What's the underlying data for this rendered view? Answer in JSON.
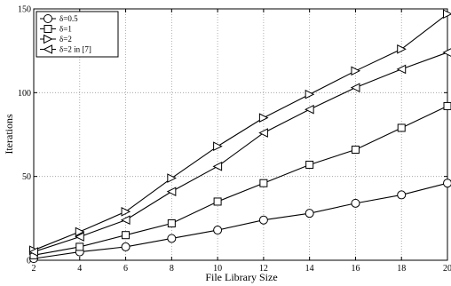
{
  "chart_data": {
    "type": "line",
    "xlabel": "File Library Size",
    "ylabel": "Iterations",
    "xlim": [
      2,
      20
    ],
    "ylim": [
      0,
      150
    ],
    "x_ticks": [
      2,
      4,
      6,
      8,
      10,
      12,
      14,
      16,
      18,
      20
    ],
    "y_ticks": [
      0,
      50,
      100,
      150
    ],
    "grid": true,
    "grid_style": "dotted",
    "legend_position": "top-left",
    "x": [
      2,
      4,
      6,
      8,
      10,
      12,
      14,
      16,
      18,
      20
    ],
    "series": [
      {
        "name": "δ=0.5",
        "marker": "circle",
        "values": [
          1,
          5,
          8,
          13,
          18,
          24,
          28,
          34,
          39,
          46
        ]
      },
      {
        "name": "δ=1",
        "marker": "square",
        "values": [
          3,
          8,
          15,
          22,
          35,
          46,
          57,
          66,
          79,
          92
        ]
      },
      {
        "name": "δ=2",
        "marker": "triangle-right",
        "values": [
          6,
          17,
          29,
          49,
          68,
          85,
          99,
          113,
          126,
          147
        ]
      },
      {
        "name": "δ=2 in [7]",
        "marker": "triangle-left",
        "values": [
          5,
          14,
          24,
          41,
          56,
          76,
          90,
          103,
          114,
          124
        ]
      }
    ],
    "colors": {
      "line": "#000000",
      "grid": "#9a9a9a",
      "background": "#ffffff"
    }
  }
}
